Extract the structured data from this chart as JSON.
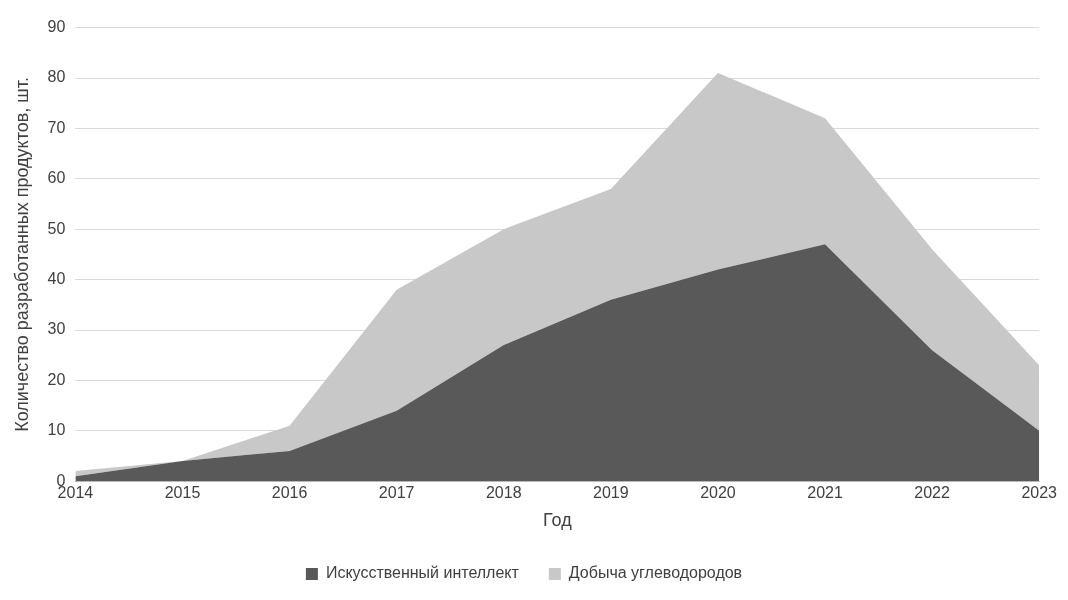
{
  "chart_data": {
    "type": "area",
    "stacked": true,
    "xlabel": "Год",
    "ylabel": "Количество разработанных продуктов, шт.",
    "x": [
      2014,
      2015,
      2016,
      2017,
      2018,
      2019,
      2020,
      2021,
      2022,
      2023
    ],
    "series": [
      {
        "name": "Искусственный интеллект",
        "color": "#595959",
        "values": [
          1,
          4,
          6,
          14,
          27,
          36,
          42,
          47,
          26,
          10
        ]
      },
      {
        "name": "Добыча углеводородов",
        "color": "#c8c8c8",
        "values": [
          1,
          0,
          5,
          24,
          23,
          22,
          39,
          25,
          20,
          13
        ]
      }
    ],
    "xlim": [
      2014,
      2023
    ],
    "xticks": [
      2014,
      2015,
      2016,
      2017,
      2018,
      2019,
      2020,
      2021,
      2022,
      2023
    ],
    "ylim": [
      0,
      90
    ],
    "yticks": [
      0,
      10,
      20,
      30,
      40,
      50,
      60,
      70,
      80,
      90
    ],
    "grid": "y",
    "legend": "bottom",
    "marker": "none"
  }
}
